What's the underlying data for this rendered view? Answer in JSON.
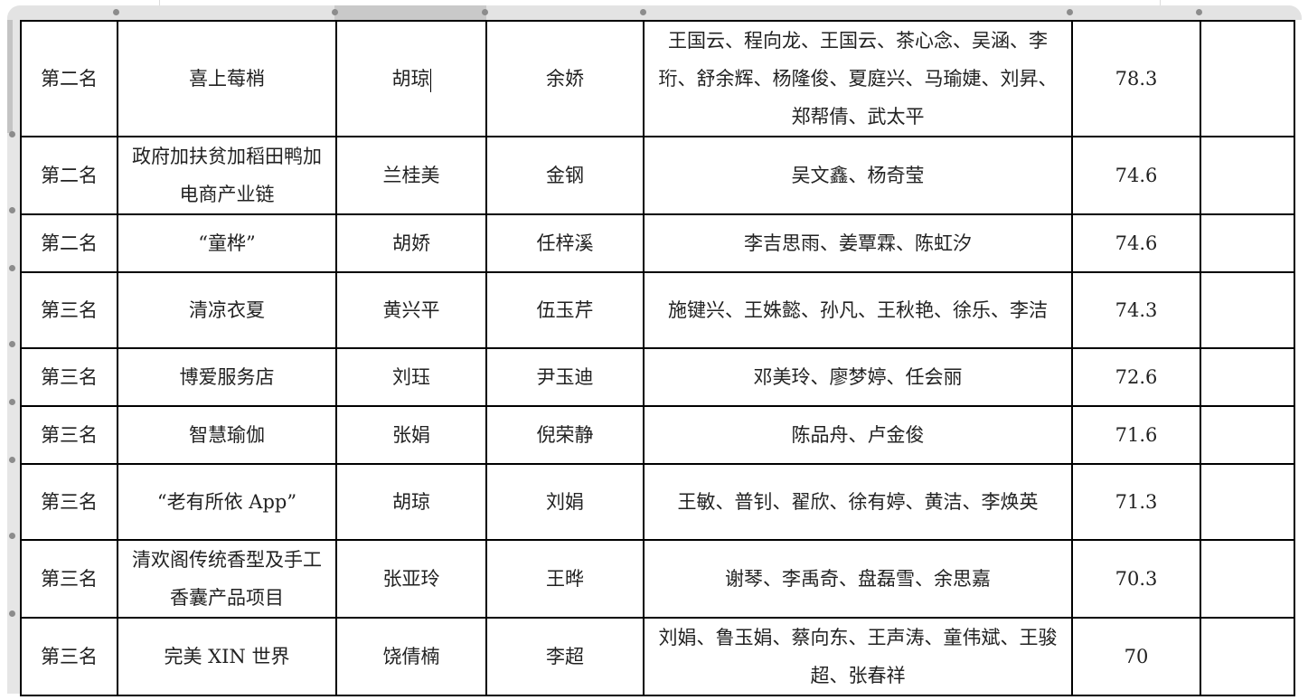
{
  "rows": [
    {
      "rank": "第二名",
      "project": "喜上莓梢",
      "leader": "胡琼",
      "advisor": "余娇",
      "members": "王国云、程向龙、王国云、茶心念、吴涵、李珩、舒余辉、杨隆俊、夏庭兴、马瑜婕、刘昇、郑帮倩、武太平",
      "score": "78.3",
      "note": ""
    },
    {
      "rank": "第二名",
      "project": "政府加扶贫加稻田鸭加电商产业链",
      "leader": "兰桂美",
      "advisor": "金钢",
      "members": "吴文鑫、杨奇莹",
      "score": "74.6",
      "note": ""
    },
    {
      "rank": "第二名",
      "project": "“童桦”",
      "leader": "胡娇",
      "advisor": "任梓溪",
      "members": "李吉思雨、姜覃霖、陈虹汐",
      "score": "74.6",
      "note": ""
    },
    {
      "rank": "第三名",
      "project": "清凉衣夏",
      "leader": "黄兴平",
      "advisor": "伍玉芹",
      "members": "施键兴、王姝懿、孙凡、王秋艳、徐乐、李洁",
      "score": "74.3",
      "note": ""
    },
    {
      "rank": "第三名",
      "project": "博爱服务店",
      "leader": "刘珏",
      "advisor": "尹玉迪",
      "members": "邓美玲、廖梦婷、任会丽",
      "score": "72.6",
      "note": ""
    },
    {
      "rank": "第三名",
      "project": "智慧瑜伽",
      "leader": "张娟",
      "advisor": "倪荣静",
      "members": "陈品舟、卢金俊",
      "score": "71.6",
      "note": ""
    },
    {
      "rank": "第三名",
      "project": "“老有所依 App”",
      "leader": "胡琼",
      "advisor": "刘娟",
      "members": "王敏、普钊、翟欣、徐有婷、黄洁、李焕英",
      "score": "71.3",
      "note": ""
    },
    {
      "rank": "第三名",
      "project": "清欢阁传统香型及手工香囊产品项目",
      "leader": "张亚玲",
      "advisor": "王晔",
      "members": "谢琴、李禹奇、盘磊雪、余思嘉",
      "score": "70.3",
      "note": ""
    },
    {
      "rank": "第三名",
      "project": "完美 XIN 世界",
      "leader": "饶倩楠",
      "advisor": "李超",
      "members": "刘娟、鲁玉娟、蔡向东、王声涛、童伟斌、王骏超、张春祥",
      "score": "70",
      "note": ""
    }
  ]
}
